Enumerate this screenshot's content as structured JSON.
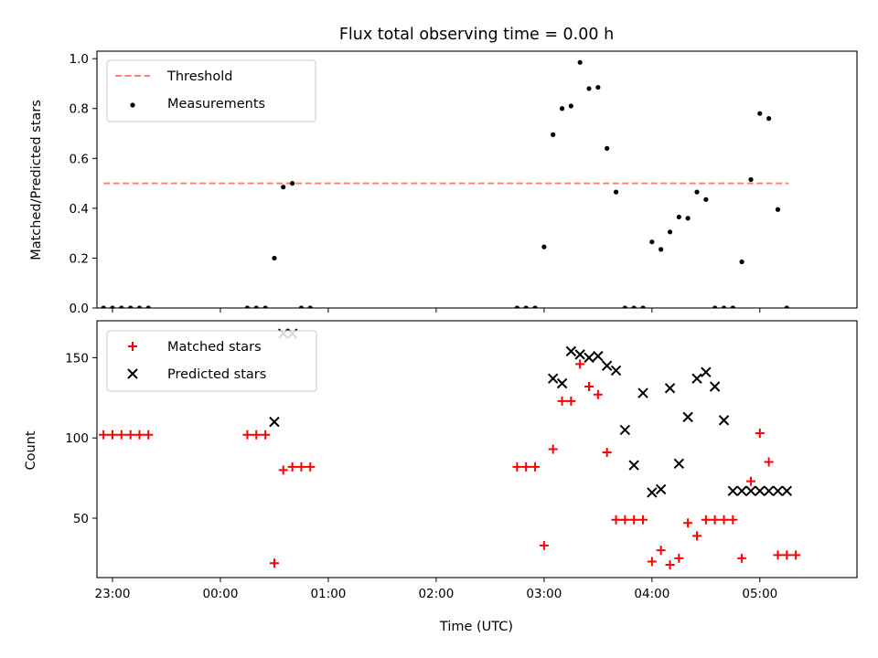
{
  "chart_data": [
    {
      "type": "line",
      "title": "Flux total observing time = 0.00 h",
      "ylabel": "Matched/Predicted stars",
      "xlabel": "",
      "xlim": [
        -0.144,
        6.9
      ],
      "ylim": [
        0,
        1.03
      ],
      "x_ticks": [
        0,
        1,
        2,
        3,
        4,
        5,
        6
      ],
      "x_tick_labels": [
        "",
        "",
        "",
        "",
        "",
        "",
        ""
      ],
      "y_ticks": [
        0,
        0.2,
        0.4,
        0.6,
        0.8,
        1.0
      ],
      "y_tick_labels": [
        "0.0",
        "0.2",
        "0.4",
        "0.6",
        "0.8",
        "1.0"
      ],
      "legend_position": "upper-left",
      "series": [
        {
          "name": "Threshold",
          "style": "dashed-line",
          "color": "#ff7f7f",
          "x": [
            -0.083,
            6.267
          ],
          "y": [
            0.5,
            0.5
          ]
        },
        {
          "name": "Measurements",
          "style": "scatter-dot",
          "color": "#000000",
          "x": [
            -0.083,
            0.0,
            0.083,
            0.167,
            0.25,
            0.333,
            1.25,
            1.333,
            1.417,
            1.5,
            1.583,
            1.667,
            1.75,
            1.833,
            3.75,
            3.833,
            3.917,
            4.0,
            4.083,
            4.167,
            4.25,
            4.333,
            4.417,
            4.5,
            4.583,
            4.667,
            4.75,
            4.833,
            4.917,
            5.0,
            5.083,
            5.167,
            5.25,
            5.333,
            5.417,
            5.5,
            5.583,
            5.667,
            5.75,
            5.833,
            5.917,
            6.0,
            6.083,
            6.167,
            6.25
          ],
          "y": [
            0,
            0,
            0,
            0,
            0,
            0,
            0,
            0,
            0,
            0.2,
            0.485,
            0.5,
            0,
            0,
            0,
            0,
            0,
            0.245,
            0.695,
            0.8,
            0.81,
            0.985,
            0.88,
            0.885,
            0.64,
            0.465,
            0,
            0,
            0,
            0.265,
            0.235,
            0.305,
            0.365,
            0.36,
            0.465,
            0.435,
            0,
            0,
            0,
            0.185,
            0.515,
            0.78,
            0.76,
            0.395,
            0
          ]
        }
      ]
    },
    {
      "type": "scatter",
      "title": "",
      "ylabel": "Count",
      "xlabel": "Time (UTC)",
      "xlim": [
        -0.144,
        6.9
      ],
      "ylim": [
        13,
        173
      ],
      "x_ticks": [
        0,
        1,
        2,
        3,
        4,
        5,
        6
      ],
      "x_tick_labels": [
        "23:00",
        "00:00",
        "01:00",
        "02:00",
        "03:00",
        "04:00",
        "05:00"
      ],
      "y_ticks": [
        50,
        100,
        150
      ],
      "y_tick_labels": [
        "50",
        "100",
        "150"
      ],
      "legend_position": "upper-left",
      "series": [
        {
          "name": "Matched stars",
          "marker": "plus",
          "color": "#ff0000",
          "x": [
            -0.083,
            0.0,
            0.083,
            0.167,
            0.25,
            0.333,
            1.25,
            1.333,
            1.417,
            1.5,
            1.583,
            1.667,
            1.75,
            1.833,
            3.75,
            3.833,
            3.917,
            4.0,
            4.083,
            4.167,
            4.25,
            4.333,
            4.417,
            4.5,
            4.583,
            4.667,
            4.75,
            4.833,
            4.917,
            5.0,
            5.083,
            5.167,
            5.25,
            5.333,
            5.417,
            5.5,
            5.583,
            5.667,
            5.75,
            5.833,
            5.917,
            6.0,
            6.083,
            6.167,
            6.25,
            6.333
          ],
          "y": [
            102,
            102,
            102,
            102,
            102,
            102,
            102,
            102,
            102,
            22,
            80,
            82,
            82,
            82,
            82,
            82,
            82,
            33,
            93,
            123,
            123,
            146,
            132,
            127,
            91,
            49,
            49,
            49,
            49,
            23,
            30,
            21,
            25,
            47,
            39,
            49,
            49,
            49,
            49,
            25,
            73,
            103,
            85,
            27,
            27,
            27
          ]
        },
        {
          "name": "Predicted stars",
          "marker": "x",
          "color": "#000000",
          "x": [
            1.5,
            1.583,
            1.667,
            4.083,
            4.167,
            4.25,
            4.333,
            4.417,
            4.5,
            4.583,
            4.667,
            4.75,
            4.833,
            4.917,
            5.0,
            5.083,
            5.167,
            5.25,
            5.333,
            5.417,
            5.5,
            5.583,
            5.667,
            5.75,
            5.833,
            5.917,
            6.0,
            6.083,
            6.167,
            6.25
          ],
          "y": [
            110,
            165,
            165,
            137,
            134,
            154,
            152,
            150,
            151,
            145,
            142,
            105,
            83,
            128,
            66,
            68,
            131,
            84,
            113,
            137,
            141,
            132,
            111,
            67,
            67,
            67,
            67,
            67,
            67,
            67
          ]
        }
      ]
    }
  ]
}
